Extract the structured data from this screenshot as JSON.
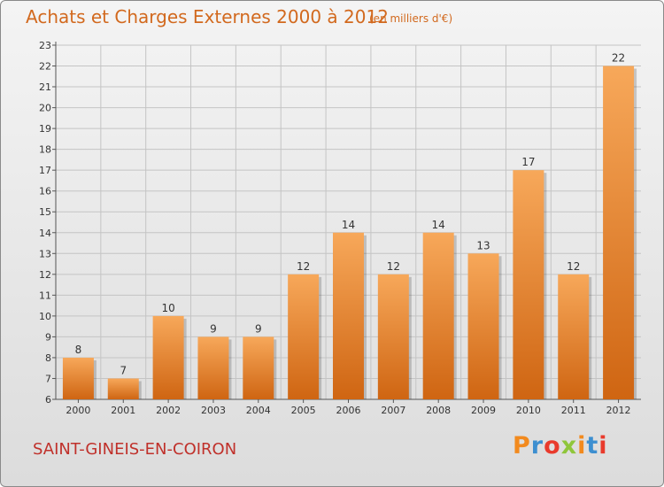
{
  "title": "Achats et Charges Externes 2000 à 2012",
  "subtitle": "(en milliers d'€)",
  "footer": {
    "town": "SAINT-GINEIS-EN-COIRON",
    "logo": "Proxiti",
    "logo_colors": [
      "#f28a1e",
      "#3d8fd0",
      "#e93a2c",
      "#8fc63b",
      "#f28a1e",
      "#3d8fd0",
      "#e93a2c"
    ]
  },
  "colors": {
    "title": "#d2691e",
    "town": "#c0312b",
    "bar_top": "#f7a85a",
    "bar_bottom": "#cf6512"
  },
  "chart_data": {
    "type": "bar",
    "categories": [
      "2000",
      "2001",
      "2002",
      "2003",
      "2004",
      "2005",
      "2006",
      "2007",
      "2008",
      "2009",
      "2010",
      "2011",
      "2012"
    ],
    "values": [
      8,
      7,
      10,
      9,
      9,
      12,
      14,
      12,
      14,
      13,
      17,
      12,
      22
    ],
    "data_labels": [
      "8",
      "7",
      "10",
      "9",
      "9",
      "12",
      "14",
      "12",
      "14",
      "13",
      "17",
      "12",
      "22"
    ],
    "title": "Achats et Charges Externes 2000 à 2012",
    "ylim": [
      6,
      23
    ],
    "yticks": [
      "6",
      "7",
      "8",
      "9",
      "10",
      "11",
      "12",
      "13",
      "14",
      "15",
      "16",
      "17",
      "18",
      "19",
      "20",
      "21",
      "22",
      "23"
    ],
    "grid": true,
    "legend": "none"
  }
}
